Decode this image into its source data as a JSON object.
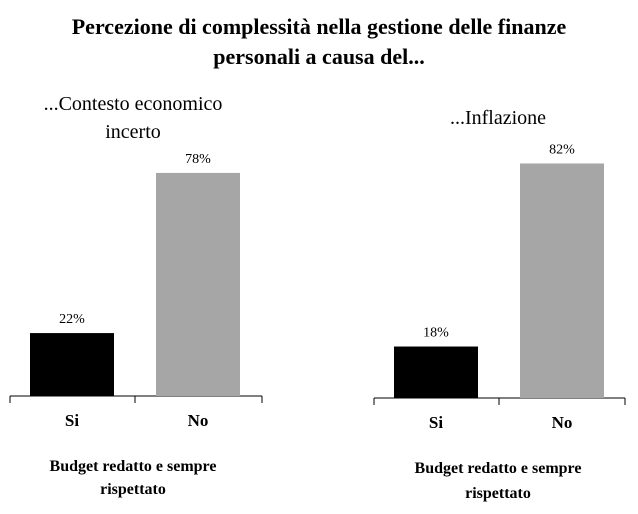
{
  "title": "Percezione di complessità nella gestione delle finanze\npersonali a causa del...",
  "colors": {
    "si": "#000000",
    "no": "#a6a6a6",
    "axis": "#000000"
  },
  "chart_data": [
    {
      "type": "bar",
      "title": [
        "...Contesto economico",
        "incerto"
      ],
      "categories": [
        "Si",
        "No"
      ],
      "values": [
        22,
        78
      ],
      "value_labels": [
        "22%",
        "78%"
      ],
      "xlabel": [
        "Budget redatto e sempre",
        "rispettato"
      ],
      "ylim": [
        0,
        100
      ],
      "grid": false,
      "legend": "none"
    },
    {
      "type": "bar",
      "title": [
        "...Inflazione"
      ],
      "categories": [
        "Si",
        "No"
      ],
      "values": [
        18,
        82
      ],
      "value_labels": [
        "18%",
        "82%"
      ],
      "xlabel": [
        "Budget redatto e sempre",
        "rispettato"
      ],
      "ylim": [
        0,
        100
      ],
      "grid": false,
      "legend": "none"
    }
  ]
}
